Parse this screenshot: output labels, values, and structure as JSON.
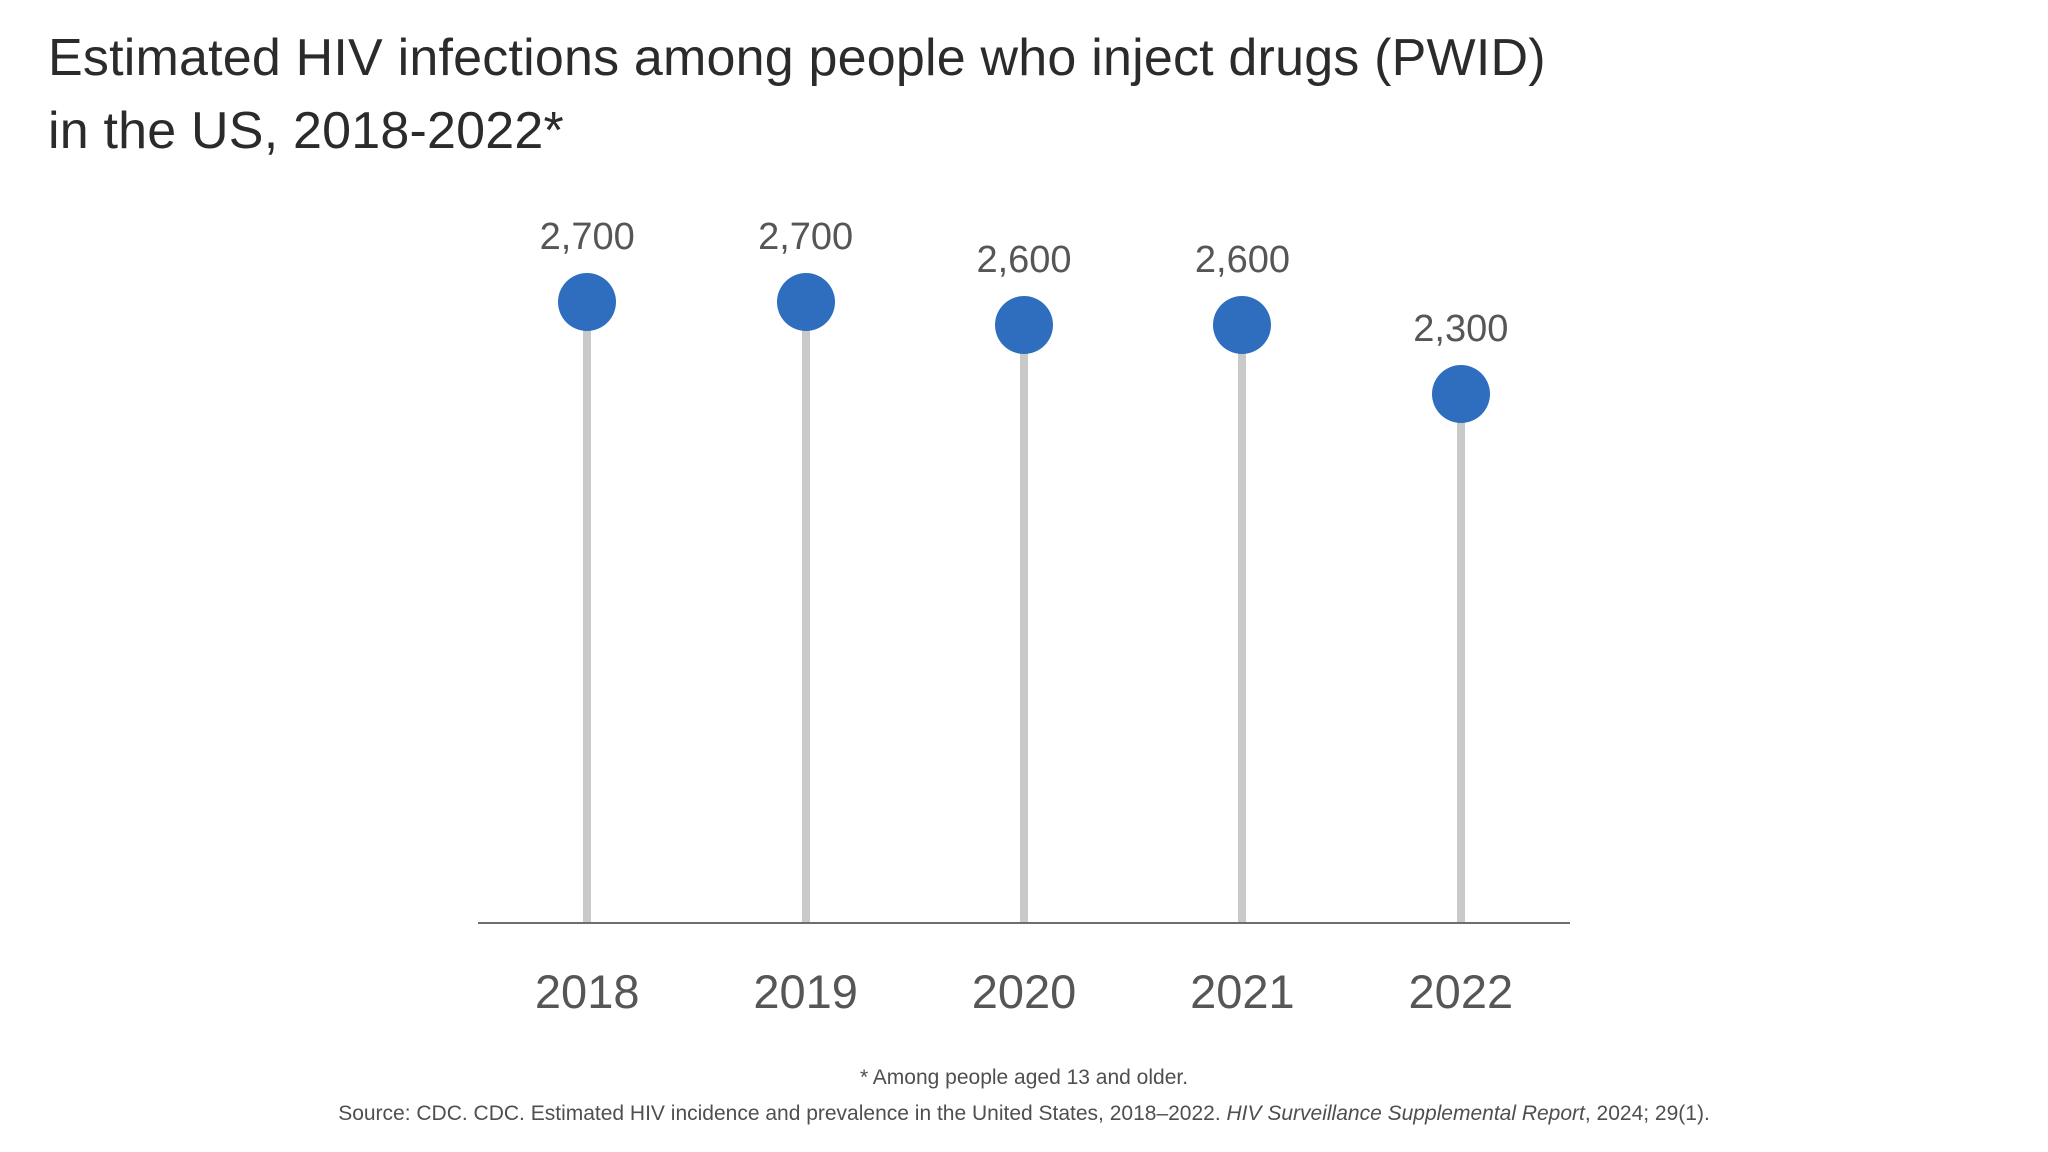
{
  "title": {
    "line1": "Estimated HIV infections among people who inject drugs (PWID)",
    "line2": "in the US, 2018-2022*"
  },
  "chart_data": {
    "type": "lollipop",
    "title": "Estimated HIV infections among people who inject drugs (PWID) in the US, 2018-2022*",
    "categories": [
      "2018",
      "2019",
      "2020",
      "2021",
      "2022"
    ],
    "values": [
      2700,
      2700,
      2600,
      2600,
      2300
    ],
    "value_labels": [
      "2,700",
      "2,700",
      "2,600",
      "2,600",
      "2,300"
    ],
    "xlabel": "",
    "ylabel": "",
    "ylim": [
      0,
      3000
    ],
    "grid": false,
    "legend": "none",
    "colors": {
      "dot": "#2f6ebf",
      "stem": "#c9c9c9",
      "axis": "#6e6e6e",
      "title_text": "#2b2b2b",
      "label_text": "#565656"
    }
  },
  "footnote": "* Among people aged 13 and older.",
  "source": {
    "prefix": "Source: CDC. CDC. Estimated HIV incidence and prevalence in the United States, 2018–2022. ",
    "italic": "HIV Surveillance Supplemental Report",
    "suffix": ", 2024; 29(1)."
  }
}
